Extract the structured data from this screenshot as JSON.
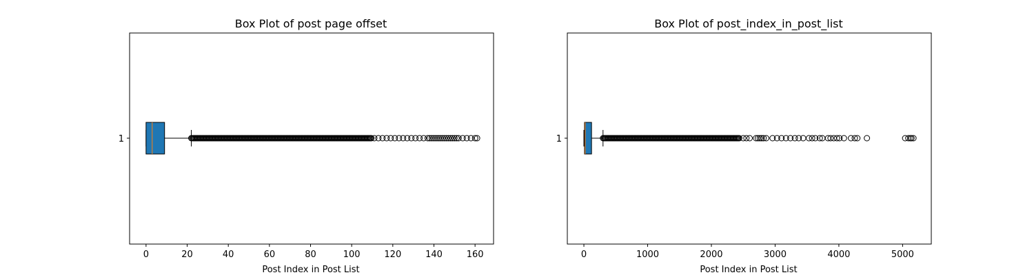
{
  "chart_data": [
    {
      "type": "boxplot",
      "orientation": "horizontal",
      "title": "Box Plot of post page offset",
      "xlabel": "Post Index in Post List",
      "ylabel": "",
      "xlim": [
        -8,
        169
      ],
      "xticks": [
        0,
        20,
        40,
        60,
        80,
        100,
        120,
        140,
        160
      ],
      "yticks": [
        "1"
      ],
      "box": {
        "position": "1",
        "whislo": 0,
        "q1": 0,
        "median": 3,
        "q3": 9,
        "whishi": 22
      },
      "outliers_dense_range": [
        22,
        110
      ],
      "outliers_sparse": [
        111,
        113,
        115,
        117,
        119,
        121,
        123,
        125,
        127,
        129,
        131,
        133,
        135,
        137,
        138,
        139,
        140,
        141,
        142,
        143,
        144,
        145,
        146,
        147,
        148,
        149,
        150,
        151,
        152,
        154,
        156,
        158,
        160,
        161
      ],
      "colors": {
        "box_fill": "#1f77b4",
        "median": "#ff7f0e",
        "edge": "#000000"
      }
    },
    {
      "type": "boxplot",
      "orientation": "horizontal",
      "title": "Box Plot of post_index_in_post_list",
      "xlabel": "Post Index in Post List",
      "ylabel": "",
      "xlim": [
        -260,
        5450
      ],
      "xticks": [
        0,
        1000,
        2000,
        3000,
        4000,
        5000
      ],
      "yticks": [
        "1"
      ],
      "box": {
        "position": "1",
        "whislo": 0,
        "q1": 10,
        "median": 20,
        "q3": 120,
        "whishi": 300
      },
      "outliers_dense_range": [
        300,
        2450
      ],
      "outliers_sparse": [
        2500,
        2550,
        2600,
        2700,
        2730,
        2760,
        2790,
        2820,
        2860,
        2960,
        3030,
        3100,
        3170,
        3240,
        3310,
        3370,
        3440,
        3530,
        3580,
        3630,
        3700,
        3740,
        3830,
        3870,
        3920,
        3970,
        4010,
        4080,
        4190,
        4250,
        4290,
        4440,
        5040,
        5090,
        5120,
        5140,
        5170
      ],
      "colors": {
        "box_fill": "#1f77b4",
        "median": "#ff7f0e",
        "edge": "#000000"
      }
    }
  ]
}
